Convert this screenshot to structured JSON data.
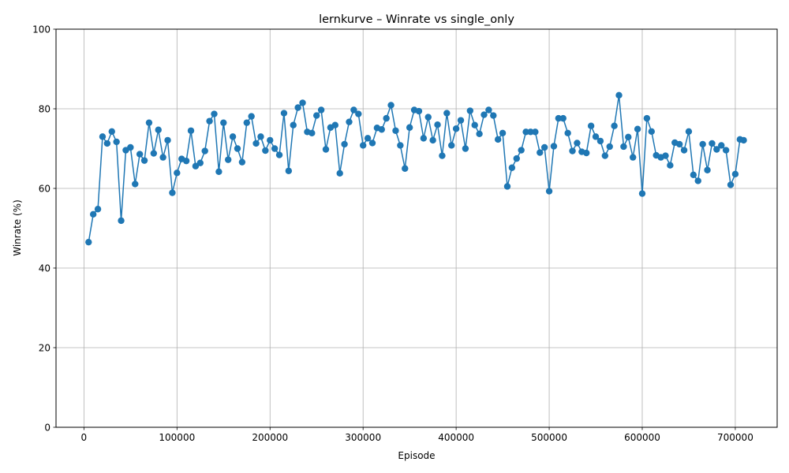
{
  "chart_data": {
    "type": "line",
    "title": "lernkurve – Winrate vs single_only",
    "xlabel": "Episode",
    "ylabel": "Winrate (%)",
    "xlim": [
      -30000,
      745000
    ],
    "ylim": [
      0,
      100
    ],
    "xticks": [
      0,
      100000,
      200000,
      300000,
      400000,
      500000,
      600000,
      700000
    ],
    "xtick_labels": [
      "0",
      "100000",
      "200000",
      "300000",
      "400000",
      "500000",
      "600000",
      "700000"
    ],
    "yticks": [
      0,
      20,
      40,
      60,
      80,
      100
    ],
    "ytick_labels": [
      "0",
      "20",
      "40",
      "60",
      "80",
      "100"
    ],
    "grid": true,
    "color": "#1f77b4",
    "series": [
      {
        "x": [
          5000,
          10000,
          15000,
          20000,
          25000,
          30000,
          35000,
          40000,
          45000,
          50000,
          55000,
          60000,
          65000,
          70000,
          75000,
          80000,
          85000,
          90000,
          95000,
          100000,
          105000,
          110000,
          115000,
          120000,
          125000,
          130000,
          135000,
          140000,
          145000,
          150000,
          155000,
          160000,
          165000,
          170000,
          175000,
          180000,
          185000,
          190000,
          195000,
          200000,
          205000,
          210000,
          215000,
          220000,
          225000,
          230000,
          235000,
          240000,
          245000,
          250000,
          255000,
          260000,
          265000,
          270000,
          275000,
          280000,
          285000,
          290000,
          295000,
          300000,
          305000,
          310000,
          315000,
          320000,
          325000,
          330000,
          335000,
          340000,
          345000,
          350000,
          355000,
          360000,
          365000,
          370000,
          375000,
          380000,
          385000,
          390000,
          395000,
          400000,
          405000,
          410000,
          415000,
          420000,
          425000,
          430000,
          435000,
          440000,
          445000,
          450000,
          455000,
          460000,
          465000,
          470000,
          475000,
          480000,
          485000,
          490000,
          495000,
          500000,
          505000,
          510000,
          515000,
          520000,
          525000,
          530000,
          535000,
          540000,
          545000,
          550000,
          555000,
          560000,
          565000,
          570000,
          575000,
          580000,
          585000,
          590000,
          595000,
          600000,
          605000,
          610000,
          615000,
          620000,
          625000,
          630000,
          635000,
          640000,
          645000,
          650000,
          655000,
          660000,
          665000,
          670000,
          675000,
          680000,
          685000,
          690000,
          695000,
          700000,
          705000,
          709000
        ],
        "values": [
          46.5,
          53.5,
          54.8,
          73.0,
          71.3,
          74.3,
          71.7,
          51.9,
          69.6,
          70.3,
          61.1,
          68.6,
          67.0,
          76.5,
          68.8,
          74.7,
          67.8,
          72.1,
          58.9,
          63.9,
          67.4,
          66.9,
          74.5,
          65.6,
          66.4,
          69.4,
          76.9,
          78.7,
          64.2,
          76.5,
          67.2,
          73.0,
          70.0,
          66.6,
          76.5,
          78.1,
          71.3,
          73.0,
          69.5,
          72.1,
          70.0,
          68.4,
          78.9,
          64.4,
          75.9,
          80.3,
          81.5,
          74.2,
          73.9,
          78.3,
          79.7,
          69.8,
          75.3,
          75.9,
          63.8,
          71.1,
          76.7,
          79.7,
          78.7,
          70.8,
          72.6,
          71.4,
          75.2,
          74.8,
          77.6,
          80.9,
          74.5,
          70.8,
          65.0,
          75.3,
          79.7,
          79.4,
          72.6,
          77.9,
          72.1,
          76.0,
          68.2,
          78.9,
          70.8,
          75.0,
          77.1,
          70.0,
          79.5,
          75.9,
          73.7,
          78.5,
          79.7,
          78.3,
          72.3,
          73.9,
          60.5,
          65.2,
          67.5,
          69.6,
          74.2,
          74.2,
          74.2,
          69.0,
          70.3,
          59.3,
          70.6,
          77.6,
          77.6,
          73.9,
          69.4,
          71.4,
          69.2,
          68.9,
          75.7,
          73.0,
          71.9,
          68.2,
          70.5,
          75.7,
          83.4,
          70.5,
          72.9,
          67.8,
          74.9,
          58.7,
          77.6,
          74.3,
          68.3,
          67.8,
          68.2,
          65.8,
          71.5,
          71.1,
          69.6,
          74.3,
          63.4,
          61.9,
          71.1,
          64.6,
          71.3,
          69.8,
          70.8,
          69.6,
          60.9,
          63.6,
          72.3,
          72.1
        ]
      }
    ]
  }
}
